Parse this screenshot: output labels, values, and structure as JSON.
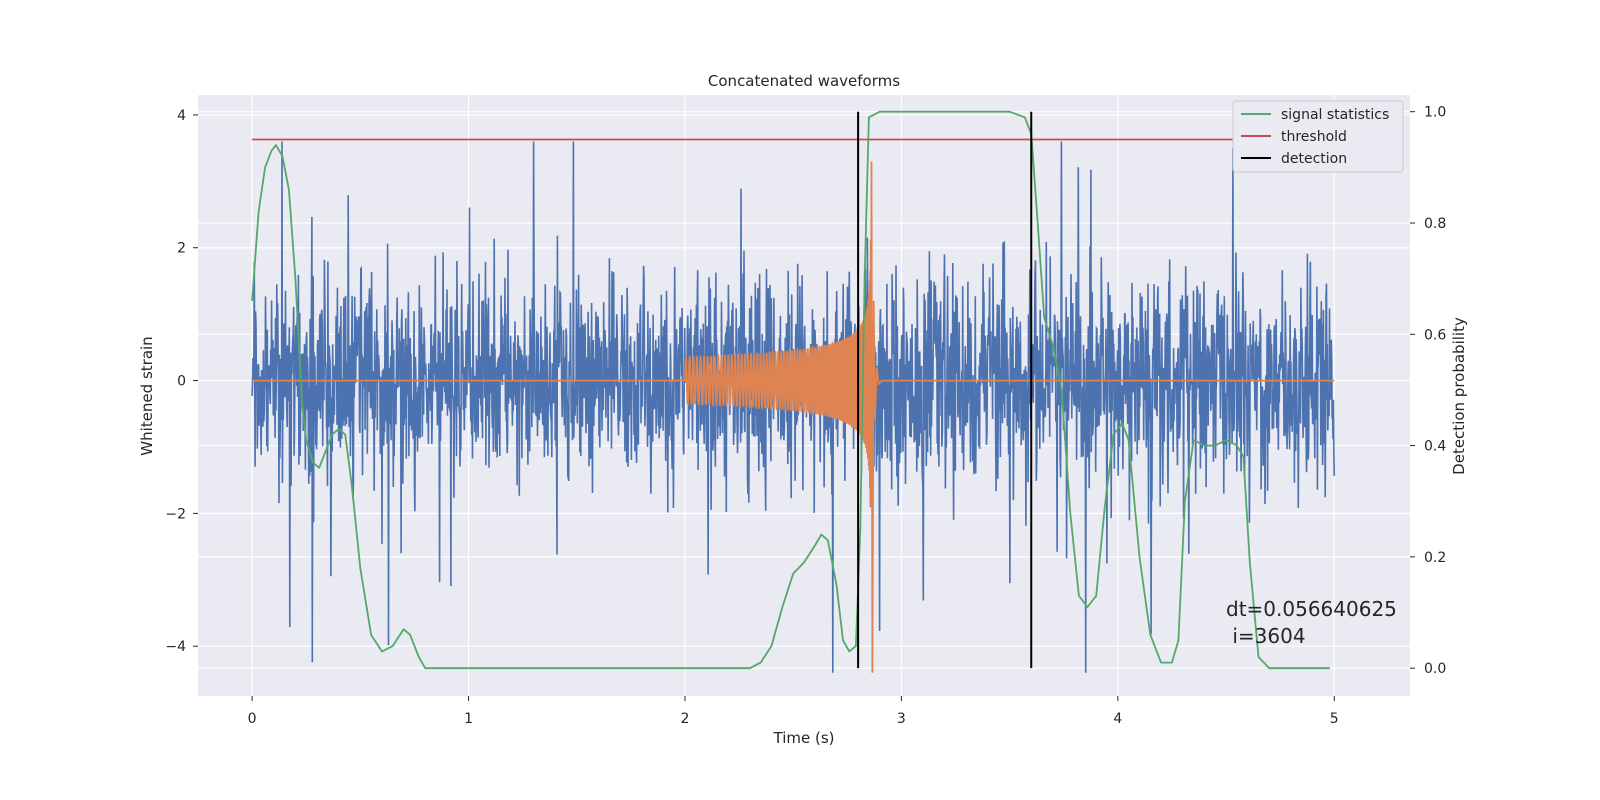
{
  "chart_data": {
    "type": "line",
    "title": "Concatenated waveforms",
    "xlabel": "Time (s)",
    "ylabel": "Whitened strain",
    "ylabel_right": "Detection probability",
    "xlim": [
      -0.25,
      5.35
    ],
    "ylim": [
      -4.75,
      4.3
    ],
    "ylim_right": [
      -0.05,
      1.03
    ],
    "x_ticks": [
      0,
      1,
      2,
      3,
      4,
      5
    ],
    "x_tick_labels": [
      "0",
      "1",
      "2",
      "3",
      "4",
      "5"
    ],
    "y_ticks": [
      -4,
      -2,
      0,
      2,
      4
    ],
    "y_tick_labels": [
      "−4",
      "−2",
      "0",
      "2",
      "4"
    ],
    "y_right_ticks": [
      0.0,
      0.2,
      0.4,
      0.6,
      0.8,
      1.0
    ],
    "y_right_tick_labels": [
      "0.0",
      "0.2",
      "0.4",
      "0.6",
      "0.8",
      "1.0"
    ],
    "grid": true,
    "legend_position": "top-right",
    "legend": [
      {
        "label": "signal statistics",
        "color": "#55a868"
      },
      {
        "label": "threshold",
        "color": "#c44e52"
      },
      {
        "label": "detection",
        "color": "#000000"
      }
    ],
    "annotation": {
      "line1": "dt=0.056640625",
      "line2": " i=3604",
      "x": 4.5,
      "y": -3.45
    },
    "series": [
      {
        "key": "noise",
        "axis": "left",
        "color": "#4c72b0",
        "description_x_range": [
          0,
          5
        ],
        "envelope": {
          "typical_abs": 1.3,
          "max_pos": 3.6,
          "min_neg": -4.4
        },
        "sample_count": 2500
      },
      {
        "key": "chirp",
        "axis": "left",
        "color": "#dd8452",
        "x_start": 2.0,
        "x_peak": 2.86,
        "x_end": 3.0,
        "amp_start": 0.35,
        "amp_peak": 3.3,
        "amp_min": -4.4,
        "baseline": 0
      },
      {
        "name": "signal statistics",
        "axis": "right",
        "color": "#55a868",
        "x": [
          0.0,
          0.03,
          0.06,
          0.09,
          0.11,
          0.14,
          0.17,
          0.2,
          0.23,
          0.25,
          0.28,
          0.31,
          0.34,
          0.37,
          0.4,
          0.43,
          0.46,
          0.5,
          0.55,
          0.6,
          0.65,
          0.7,
          0.73,
          0.77,
          0.8,
          0.9,
          1.0,
          1.5,
          2.0,
          2.3,
          2.35,
          2.4,
          2.45,
          2.5,
          2.55,
          2.6,
          2.63,
          2.66,
          2.7,
          2.73,
          2.76,
          2.79,
          2.81,
          2.83,
          2.85,
          2.9,
          3.0,
          3.2,
          3.5,
          3.57,
          3.6,
          3.63,
          3.66,
          3.7,
          3.74,
          3.78,
          3.82,
          3.86,
          3.9,
          3.94,
          3.98,
          4.02,
          4.05,
          4.1,
          4.15,
          4.2,
          4.25,
          4.28,
          4.31,
          4.35,
          4.4,
          4.45,
          4.5,
          4.55,
          4.58,
          4.61,
          4.65,
          4.7,
          4.8,
          4.9,
          4.98
        ],
        "y": [
          0.66,
          0.82,
          0.9,
          0.93,
          0.94,
          0.92,
          0.86,
          0.7,
          0.48,
          0.41,
          0.37,
          0.36,
          0.39,
          0.42,
          0.43,
          0.42,
          0.33,
          0.18,
          0.06,
          0.03,
          0.04,
          0.07,
          0.06,
          0.02,
          0.0,
          0.0,
          0.0,
          0.0,
          0.0,
          0.0,
          0.01,
          0.04,
          0.11,
          0.17,
          0.19,
          0.22,
          0.24,
          0.23,
          0.15,
          0.05,
          0.03,
          0.04,
          0.25,
          0.7,
          0.99,
          1.0,
          1.0,
          1.0,
          1.0,
          0.99,
          0.96,
          0.8,
          0.63,
          0.58,
          0.5,
          0.28,
          0.13,
          0.11,
          0.13,
          0.29,
          0.42,
          0.44,
          0.41,
          0.2,
          0.06,
          0.01,
          0.01,
          0.05,
          0.3,
          0.41,
          0.4,
          0.4,
          0.41,
          0.4,
          0.38,
          0.19,
          0.02,
          0.0,
          0.0,
          0.0,
          0.0
        ]
      },
      {
        "name": "threshold",
        "axis": "right",
        "color": "#c44e52",
        "x": [
          0,
          5.1
        ],
        "y": [
          0.95,
          0.95
        ]
      },
      {
        "name": "detection",
        "axis": "right",
        "color": "#000000",
        "type": "vlines",
        "x": [
          2.8,
          3.6
        ],
        "y_range": [
          0.0,
          1.0
        ]
      }
    ]
  }
}
